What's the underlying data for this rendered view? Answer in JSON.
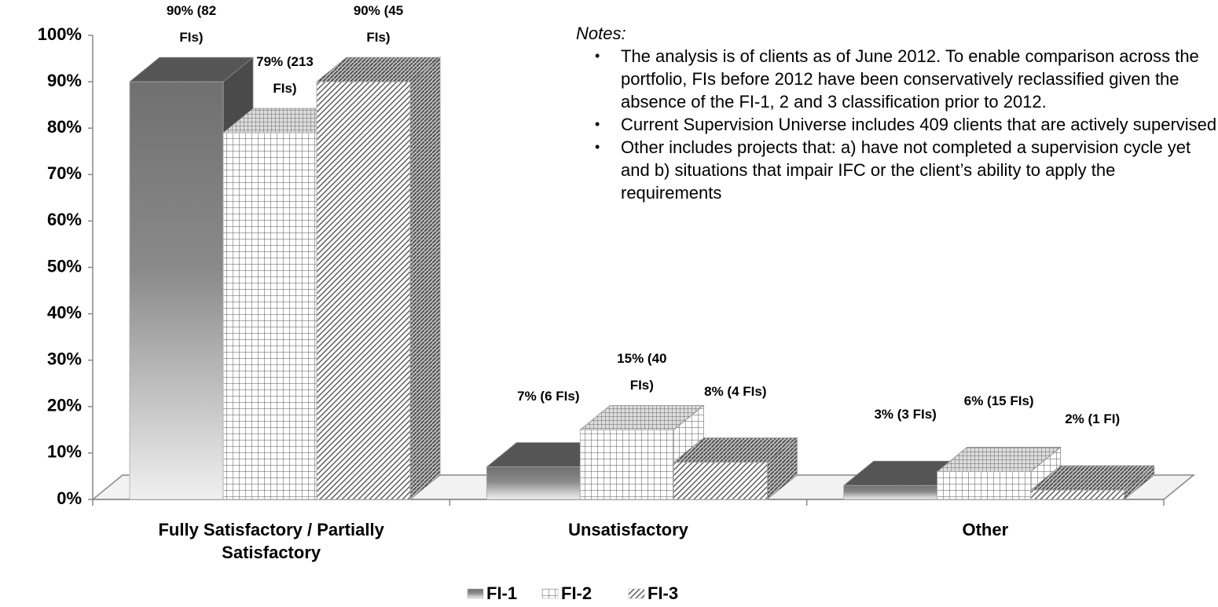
{
  "chart_data": {
    "type": "bar3d",
    "categories": [
      "Fully Satisfactory / Partially Satisfactory",
      "Unsatisfactory",
      "Other"
    ],
    "series": [
      {
        "name": "FI-1",
        "color": "#6e6e6e",
        "values": [
          90,
          7,
          3
        ],
        "value_labels": [
          "90% (82 FIs)",
          "7% (6 FIs)",
          "3% (3 FIs)"
        ]
      },
      {
        "name": "FI-2",
        "color": "#ffffff",
        "values": [
          79,
          15,
          6
        ],
        "value_labels": [
          "79% (213 FIs)",
          "15% (40 FIs)",
          "6% (15 FIs)"
        ]
      },
      {
        "name": "FI-3",
        "color": "#ffffff",
        "values": [
          90,
          8,
          2
        ],
        "value_labels": [
          "90% (45 FIs)",
          "8% (4 FIs)",
          "2% (1 FI)"
        ]
      }
    ],
    "ylim": [
      0,
      100
    ],
    "yticks": [
      {
        "value": 0,
        "label": "0%"
      },
      {
        "value": 10,
        "label": "10%"
      },
      {
        "value": 20,
        "label": "20%"
      },
      {
        "value": 30,
        "label": "30%"
      },
      {
        "value": 40,
        "label": "40%"
      },
      {
        "value": 50,
        "label": "50%"
      },
      {
        "value": 60,
        "label": "60%"
      },
      {
        "value": 70,
        "label": "70%"
      },
      {
        "value": 80,
        "label": "80%"
      },
      {
        "value": 90,
        "label": "90%"
      },
      {
        "value": 100,
        "label": "100%"
      }
    ],
    "legend": "bottom",
    "notes": {
      "title": "Notes:",
      "items": [
        "The analysis is of clients as of June 2012. To enable comparison across the portfolio, FIs before 2012 have been conservatively reclassified given the absence of the FI-1, 2 and 3 classification prior to 2012.",
        "Current Supervision Universe includes 409 clients that are actively supervised",
        "Other includes projects that: a) have not completed a supervision cycle yet and b) situations that impair IFC or the client’s ability to apply the requirements"
      ]
    }
  }
}
